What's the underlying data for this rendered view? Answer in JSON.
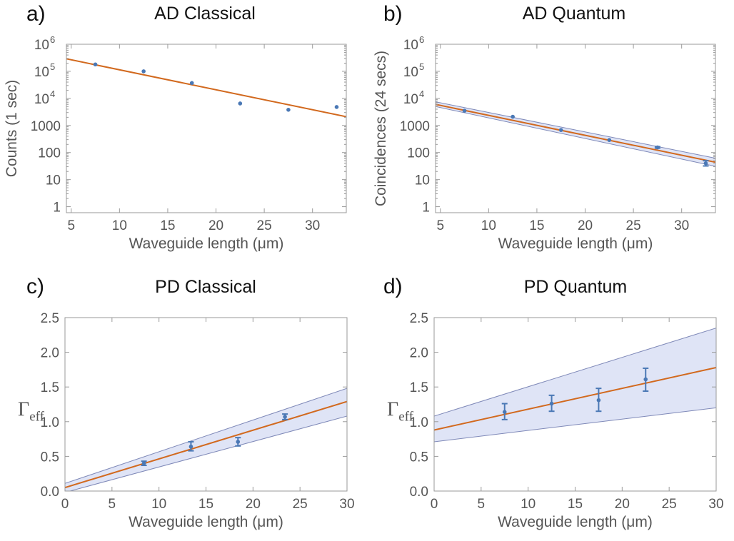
{
  "colors": {
    "fit": "#d2691e",
    "point": "#4a78b5",
    "band_fill": "#dfe4f6",
    "band_edge": "#7f89b8",
    "axis": "#9a9a9a",
    "text": "#555555"
  },
  "chart_data": [
    {
      "id": "a",
      "panel_label": "a)",
      "title": "AD Classical",
      "type": "scatter",
      "yscale": "log",
      "xlim": [
        4.5,
        33.5
      ],
      "ylim": [
        0.6,
        1000000
      ],
      "xticks": [
        5,
        10,
        15,
        20,
        25,
        30
      ],
      "xtick_labels": [
        "5",
        "10",
        "15",
        "20",
        "25",
        "30"
      ],
      "yticks": [
        1,
        10,
        100,
        1000,
        10000,
        100000,
        1000000
      ],
      "ytick_labels": [
        {
          "base": "1"
        },
        {
          "base": "10"
        },
        {
          "base": "100"
        },
        {
          "base": "1000"
        },
        {
          "base": "10",
          "exp": "4"
        },
        {
          "base": "10",
          "exp": "5"
        },
        {
          "base": "10",
          "exp": "6"
        }
      ],
      "xlabel": "Waveguide length (μm)",
      "ylabel": "Counts (1 sec)",
      "points": [
        {
          "x": 7.5,
          "y": 180000
        },
        {
          "x": 12.5,
          "y": 100000
        },
        {
          "x": 17.5,
          "y": 37000
        },
        {
          "x": 22.5,
          "y": 6500
        },
        {
          "x": 27.5,
          "y": 3800
        },
        {
          "x": 32.5,
          "y": 4800
        }
      ],
      "fit": {
        "x": [
          4.5,
          33.5
        ],
        "y": [
          290000,
          2100
        ]
      }
    },
    {
      "id": "b",
      "panel_label": "b)",
      "title": "AD Quantum",
      "type": "scatter",
      "yscale": "log",
      "xlim": [
        4.5,
        33.5
      ],
      "ylim": [
        0.6,
        1000000
      ],
      "xticks": [
        5,
        10,
        15,
        20,
        25,
        30
      ],
      "xtick_labels": [
        "5",
        "10",
        "15",
        "20",
        "25",
        "30"
      ],
      "yticks": [
        1,
        10,
        100,
        1000,
        10000,
        100000,
        1000000
      ],
      "ytick_labels": [
        {
          "base": "1"
        },
        {
          "base": "10"
        },
        {
          "base": "100"
        },
        {
          "base": "1000"
        },
        {
          "base": "10",
          "exp": "4"
        },
        {
          "base": "10",
          "exp": "5"
        },
        {
          "base": "10",
          "exp": "6"
        }
      ],
      "xlabel": "Waveguide length (μm)",
      "ylabel": "Coincidences (24 secs)",
      "points": [
        {
          "x": 7.5,
          "y": 3500
        },
        {
          "x": 12.5,
          "y": 2100
        },
        {
          "x": 17.5,
          "y": 680
        },
        {
          "x": 22.5,
          "y": 290
        },
        {
          "x": 27.5,
          "y": 155,
          "err": [
            145,
            165
          ]
        },
        {
          "x": 32.5,
          "y": 40,
          "err": [
            32,
            50
          ]
        }
      ],
      "fit": {
        "x": [
          4.5,
          33.5
        ],
        "y": [
          6000,
          44
        ]
      },
      "band": {
        "x": [
          4.5,
          33.5
        ],
        "upper": [
          7500,
          62
        ],
        "lower": [
          5000,
          31
        ]
      }
    },
    {
      "id": "c",
      "panel_label": "c)",
      "title": "PD Classical",
      "type": "scatter",
      "yscale": "linear",
      "xlim": [
        0,
        30
      ],
      "ylim": [
        0,
        2.5
      ],
      "xticks": [
        0,
        5,
        10,
        15,
        20,
        25,
        30
      ],
      "xtick_labels": [
        "0",
        "5",
        "10",
        "15",
        "20",
        "25",
        "30"
      ],
      "yticks": [
        0,
        0.5,
        1,
        1.5,
        2,
        2.5
      ],
      "ytick_labels": [
        {
          "base": "0.0"
        },
        {
          "base": "0.5"
        },
        {
          "base": "1.0"
        },
        {
          "base": "1.5"
        },
        {
          "base": "2.0"
        },
        {
          "base": "2.5"
        }
      ],
      "xlabel": "Waveguide length (μm)",
      "ylabel": "Γ",
      "ylabel_sub": "eff",
      "points": [
        {
          "x": 8.4,
          "y": 0.4,
          "err": [
            0.37,
            0.43
          ]
        },
        {
          "x": 13.4,
          "y": 0.64,
          "err": [
            0.58,
            0.71
          ]
        },
        {
          "x": 18.4,
          "y": 0.71,
          "err": [
            0.65,
            0.77
          ]
        },
        {
          "x": 23.4,
          "y": 1.07,
          "err": [
            1.03,
            1.11
          ]
        }
      ],
      "fit": {
        "x": [
          0,
          30
        ],
        "y": [
          0.05,
          1.29
        ]
      },
      "band": {
        "x": [
          0,
          30
        ],
        "upper": [
          0.11,
          1.48
        ],
        "lower": [
          -0.02,
          1.08
        ]
      }
    },
    {
      "id": "d",
      "panel_label": "d)",
      "title": "PD Quantum",
      "type": "scatter",
      "yscale": "linear",
      "xlim": [
        0,
        30
      ],
      "ylim": [
        0,
        2.5
      ],
      "xticks": [
        0,
        5,
        10,
        15,
        20,
        25,
        30
      ],
      "xtick_labels": [
        "0",
        "5",
        "10",
        "15",
        "20",
        "25",
        "30"
      ],
      "yticks": [
        0,
        0.5,
        1,
        1.5,
        2,
        2.5
      ],
      "ytick_labels": [
        {
          "base": "0.0"
        },
        {
          "base": "0.5"
        },
        {
          "base": "1.0"
        },
        {
          "base": "1.5"
        },
        {
          "base": "2.0"
        },
        {
          "base": "2.5"
        }
      ],
      "xlabel": "Waveguide length (μm)",
      "ylabel": "Γ",
      "ylabel_sub": "eff",
      "points": [
        {
          "x": 7.5,
          "y": 1.14,
          "err": [
            1.03,
            1.26
          ]
        },
        {
          "x": 12.5,
          "y": 1.26,
          "err": [
            1.15,
            1.38
          ]
        },
        {
          "x": 17.5,
          "y": 1.31,
          "err": [
            1.15,
            1.48
          ]
        },
        {
          "x": 22.5,
          "y": 1.61,
          "err": [
            1.44,
            1.77
          ]
        }
      ],
      "fit": {
        "x": [
          0,
          30
        ],
        "y": [
          0.88,
          1.78
        ]
      },
      "band": {
        "x": [
          0,
          30
        ],
        "upper": [
          1.08,
          2.35
        ],
        "lower": [
          0.71,
          1.2
        ]
      }
    }
  ]
}
